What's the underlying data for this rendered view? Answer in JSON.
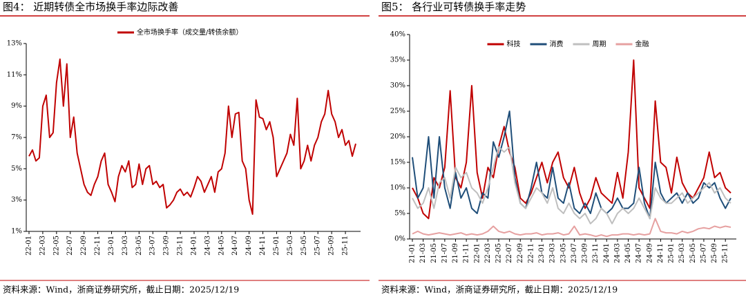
{
  "chart_data": [
    {
      "type": "line",
      "title": "图4：  近期转债全市场换手率边际改善",
      "source": "资料来源：Wind，浙商证券研究所，截止日期：2025/12/19",
      "categories": [
        "22-01",
        null,
        null,
        null,
        "22-03",
        null,
        null,
        null,
        "22-05",
        null,
        null,
        null,
        "22-07",
        null,
        null,
        null,
        "22-09",
        null,
        null,
        null,
        "22-11",
        null,
        null,
        null,
        "23-01",
        null,
        null,
        null,
        "23-03",
        null,
        null,
        null,
        "23-05",
        null,
        null,
        null,
        "23-07",
        null,
        null,
        null,
        "23-09",
        null,
        null,
        null,
        "23-11",
        null,
        null,
        null,
        "24-01",
        null,
        null,
        null,
        "24-03",
        null,
        null,
        null,
        "24-05",
        null,
        null,
        null,
        "24-07",
        null,
        null,
        null,
        "24-09",
        null,
        null,
        null,
        "24-11",
        null,
        null,
        null,
        "25-01",
        null,
        null,
        null,
        "25-03",
        null,
        null,
        null,
        "25-05",
        null,
        null,
        null,
        "25-07",
        null,
        null,
        null,
        "25-09",
        null,
        null,
        null,
        "25-11",
        null,
        null,
        null
      ],
      "series": [
        {
          "name": "全市场换手率（成交量/转债余额）",
          "color": "#c00000",
          "values": [
            5.8,
            6.2,
            5.5,
            5.7,
            9.0,
            9.7,
            7.0,
            7.3,
            10.5,
            12.0,
            9.0,
            11.7,
            7.0,
            8.3,
            6.0,
            5.0,
            4.0,
            3.5,
            3.3,
            4.0,
            4.5,
            5.5,
            6.0,
            4.0,
            3.5,
            2.9,
            4.5,
            5.2,
            4.8,
            5.5,
            3.8,
            4.0,
            5.3,
            4.0,
            5.0,
            5.2,
            4.0,
            4.2,
            3.8,
            4.0,
            2.5,
            2.7,
            3.0,
            3.5,
            3.7,
            3.3,
            3.5,
            3.2,
            3.8,
            4.5,
            4.2,
            3.5,
            4.0,
            4.5,
            3.5,
            4.8,
            5.0,
            6.0,
            9.0,
            7.0,
            8.5,
            8.6,
            5.5,
            5.0,
            3.0,
            2.1,
            9.4,
            8.3,
            8.2,
            7.5,
            8.0,
            7.0,
            4.5,
            5.0,
            5.5,
            6.0,
            7.2,
            6.5,
            9.5,
            5.0,
            5.5,
            6.5,
            5.5,
            6.5,
            7.0,
            8.0,
            8.5,
            10.0,
            8.5,
            8.0,
            7.0,
            7.5,
            6.5,
            6.8,
            5.8,
            6.6
          ]
        }
      ],
      "ylim": [
        1,
        13
      ],
      "yticks": [
        {
          "value": 1,
          "label": "1%"
        },
        {
          "value": 3,
          "label": "3%"
        },
        {
          "value": 5,
          "label": "5%"
        },
        {
          "value": 7,
          "label": "7%"
        },
        {
          "value": 9,
          "label": "9%"
        },
        {
          "value": 11,
          "label": "11%"
        },
        {
          "value": 13,
          "label": "13%"
        }
      ]
    },
    {
      "type": "line",
      "title": "图5：  各行业可转债换手率走势",
      "source": "资料来源：Wind，浙商证券研究所，截止日期：2025/12/19",
      "categories": [
        "21-01",
        null,
        "21-03",
        null,
        "21-05",
        null,
        "21-07",
        null,
        "21-09",
        null,
        "21-11",
        null,
        "22-01",
        null,
        "22-03",
        null,
        "22-05",
        null,
        "22-07",
        null,
        "22-09",
        null,
        "22-11",
        null,
        "23-01",
        null,
        "23-03",
        null,
        "23-05",
        null,
        "23-07",
        null,
        "23-09",
        null,
        "23-11",
        null,
        "24-01",
        null,
        "24-03",
        null,
        "24-05",
        null,
        "24-07",
        null,
        "24-09",
        null,
        "24-11",
        null,
        "25-01",
        null,
        "25-03",
        null,
        "25-05",
        null,
        "25-07",
        null,
        "25-09",
        null,
        "25-11",
        null
      ],
      "series": [
        {
          "name": "科技",
          "color": "#c00000",
          "values": [
            10,
            8,
            5,
            4,
            12,
            10,
            14,
            29,
            12,
            10,
            15,
            30,
            13,
            8,
            14,
            12,
            18,
            22,
            17,
            14,
            8,
            7,
            9,
            12,
            15,
            11,
            15,
            17,
            12,
            10,
            14,
            9,
            6,
            8,
            12,
            9,
            8,
            7,
            13,
            8,
            17,
            35,
            10,
            8,
            6,
            27,
            15,
            14,
            9,
            16,
            11,
            9,
            8,
            10,
            12,
            17,
            12,
            13,
            10,
            9
          ]
        },
        {
          "name": "消费",
          "color": "#1f4e79",
          "values": [
            16,
            8,
            10,
            20,
            8,
            20,
            10,
            6,
            13,
            8,
            10,
            6,
            5,
            9,
            8,
            19,
            16,
            20,
            25,
            12,
            7,
            6,
            10,
            15,
            9,
            8,
            14,
            8,
            7,
            11,
            6,
            5,
            7,
            5,
            9,
            6,
            5,
            6,
            8,
            6,
            6,
            7,
            14,
            7,
            4,
            15,
            9,
            7,
            8,
            9,
            7,
            9,
            7,
            8,
            11,
            10,
            11,
            8,
            6,
            8
          ]
        },
        {
          "name": "周期",
          "color": "#bfbfbf",
          "values": [
            8,
            6,
            7,
            10,
            6,
            11,
            12,
            8,
            14,
            12,
            13,
            10,
            9,
            7,
            10,
            14,
            18,
            17,
            18,
            11,
            7,
            6,
            8,
            10,
            9,
            7,
            10,
            6,
            5,
            7,
            5,
            4,
            5,
            3,
            4,
            6,
            5,
            3,
            5,
            6,
            5,
            6,
            8,
            6,
            4,
            10,
            8,
            7,
            7,
            8,
            9,
            7,
            8,
            9,
            10,
            11,
            9,
            10,
            8,
            7
          ]
        },
        {
          "name": "金融",
          "color": "#e6a0a0",
          "values": [
            1,
            1.5,
            1,
            0.8,
            1,
            1.2,
            1,
            0.8,
            1,
            1.2,
            0.8,
            1,
            0.8,
            1,
            1.5,
            2.5,
            1.5,
            1.2,
            1.5,
            1,
            0.8,
            1,
            1,
            1.2,
            0.8,
            1,
            1,
            1.2,
            0.8,
            1,
            2.5,
            0.8,
            1,
            0.8,
            0.5,
            0.8,
            0.5,
            0.8,
            0.8,
            1,
            1,
            0.8,
            1,
            0.8,
            1,
            4,
            1.5,
            1.2,
            1.2,
            1,
            1.5,
            1.2,
            1.5,
            2,
            2.2,
            2,
            2.5,
            2.2,
            2.5,
            2.3
          ]
        }
      ],
      "ylim": [
        0,
        40
      ],
      "yticks": [
        {
          "value": 0,
          "label": "0%"
        },
        {
          "value": 5,
          "label": "5%"
        },
        {
          "value": 10,
          "label": "10%"
        },
        {
          "value": 15,
          "label": "15%"
        },
        {
          "value": 20,
          "label": "20%"
        },
        {
          "value": 25,
          "label": "25%"
        },
        {
          "value": 30,
          "label": "30%"
        },
        {
          "value": 35,
          "label": "35%"
        },
        {
          "value": 40,
          "label": "40%"
        }
      ]
    }
  ]
}
